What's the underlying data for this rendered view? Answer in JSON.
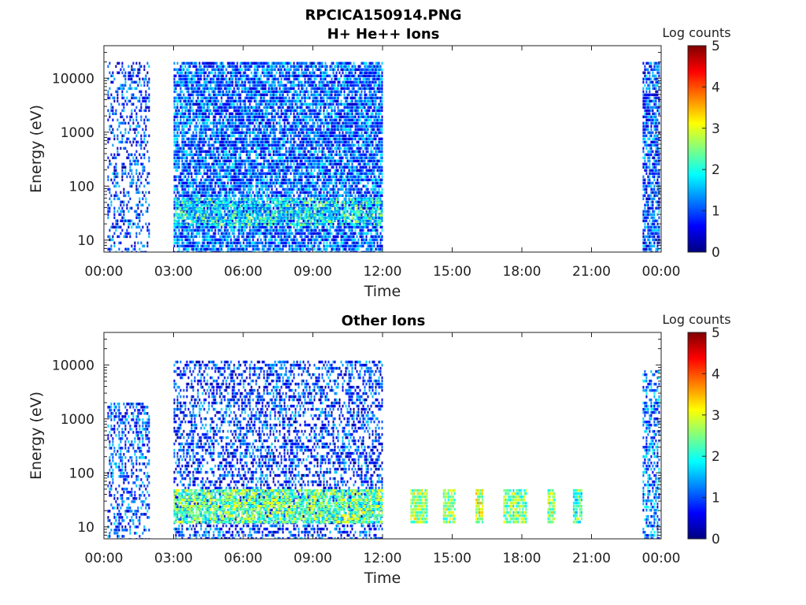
{
  "figure": {
    "file_title": "RPCICA150914.PNG"
  },
  "colormap": {
    "label": "Log counts",
    "ticks": [
      "0",
      "1",
      "2",
      "3",
      "4",
      "5"
    ],
    "range": [
      0,
      5
    ],
    "stops": [
      "#00007f",
      "#0000ff",
      "#0080ff",
      "#00ffff",
      "#80ff80",
      "#ffff00",
      "#ff8000",
      "#ff0000",
      "#7f0000"
    ]
  },
  "chart_data": [
    {
      "type": "heatmap",
      "title": "H+ He++ Ions",
      "xlabel": "Time",
      "ylabel": "Energy (eV)",
      "x_ticks": [
        "00:00",
        "03:00",
        "06:00",
        "09:00",
        "12:00",
        "15:00",
        "18:00",
        "21:00",
        "00:00"
      ],
      "y_ticks": [
        "10",
        "100",
        "1000",
        "10000"
      ],
      "y_scale": "log",
      "xlim_hours": [
        0,
        24
      ],
      "ylim_eV": [
        6,
        40000
      ],
      "colorbar_label": "Log counts",
      "colorbar_range": [
        0,
        5
      ],
      "activity_blocks": [
        {
          "start_h": 0.15,
          "end_h": 1.95,
          "emin": 6,
          "emax": 20000,
          "intensity": 0.9,
          "density": 0.35
        },
        {
          "start_h": 3.0,
          "end_h": 11.95,
          "emin": 6,
          "emax": 20000,
          "intensity": 1.1,
          "density": 0.8
        },
        {
          "start_h": 3.0,
          "end_h": 11.95,
          "emin": 20,
          "emax": 60,
          "intensity": 2.0,
          "density": 0.6
        },
        {
          "start_h": 23.2,
          "end_h": 23.9,
          "emin": 6,
          "emax": 20000,
          "intensity": 1.0,
          "density": 0.75
        }
      ]
    },
    {
      "type": "heatmap",
      "title": "Other Ions",
      "xlabel": "Time",
      "ylabel": "Energy (eV)",
      "x_ticks": [
        "00:00",
        "03:00",
        "06:00",
        "09:00",
        "12:00",
        "15:00",
        "18:00",
        "21:00",
        "00:00"
      ],
      "y_ticks": [
        "10",
        "100",
        "1000",
        "10000"
      ],
      "y_scale": "log",
      "xlim_hours": [
        0,
        24
      ],
      "ylim_eV": [
        6,
        40000
      ],
      "colorbar_label": "Log counts",
      "colorbar_range": [
        0,
        5
      ],
      "activity_blocks": [
        {
          "start_h": 0.15,
          "end_h": 1.95,
          "emin": 6,
          "emax": 2000,
          "intensity": 1.0,
          "density": 0.4
        },
        {
          "start_h": 3.0,
          "end_h": 11.95,
          "emin": 6,
          "emax": 12000,
          "intensity": 0.9,
          "density": 0.45
        },
        {
          "start_h": 3.0,
          "end_h": 11.95,
          "emin": 12,
          "emax": 50,
          "intensity": 2.4,
          "density": 0.85
        },
        {
          "start_h": 13.2,
          "end_h": 13.9,
          "emin": 12,
          "emax": 50,
          "intensity": 2.6,
          "density": 0.9
        },
        {
          "start_h": 14.6,
          "end_h": 15.1,
          "emin": 12,
          "emax": 50,
          "intensity": 2.6,
          "density": 0.9
        },
        {
          "start_h": 16.0,
          "end_h": 16.3,
          "emin": 12,
          "emax": 50,
          "intensity": 2.8,
          "density": 0.9
        },
        {
          "start_h": 17.2,
          "end_h": 18.2,
          "emin": 12,
          "emax": 50,
          "intensity": 2.5,
          "density": 0.85
        },
        {
          "start_h": 19.1,
          "end_h": 19.4,
          "emin": 12,
          "emax": 50,
          "intensity": 2.6,
          "density": 0.9
        },
        {
          "start_h": 20.2,
          "end_h": 20.6,
          "emin": 12,
          "emax": 50,
          "intensity": 2.2,
          "density": 0.9
        },
        {
          "start_h": 23.2,
          "end_h": 23.9,
          "emin": 6,
          "emax": 8000,
          "intensity": 1.2,
          "density": 0.5
        }
      ]
    }
  ]
}
